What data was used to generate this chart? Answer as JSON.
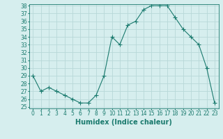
{
  "x": [
    0,
    1,
    2,
    3,
    4,
    5,
    6,
    7,
    8,
    9,
    10,
    11,
    12,
    13,
    14,
    15,
    16,
    17,
    18,
    19,
    20,
    21,
    22,
    23
  ],
  "y": [
    29.0,
    27.0,
    27.5,
    27.0,
    26.5,
    26.0,
    25.5,
    25.5,
    26.5,
    29.0,
    34.0,
    33.0,
    35.5,
    36.0,
    37.5,
    38.0,
    38.0,
    38.0,
    36.5,
    35.0,
    34.0,
    33.0,
    30.0,
    25.5
  ],
  "line_color": "#1a7a6e",
  "marker": "+",
  "marker_size": 4,
  "bg_color": "#d6eeee",
  "grid_color": "#b8d8d8",
  "xlabel": "Humidex (Indice chaleur)",
  "ylim": [
    25,
    38
  ],
  "xlim": [
    -0.5,
    23.5
  ],
  "yticks": [
    25,
    26,
    27,
    28,
    29,
    30,
    31,
    32,
    33,
    34,
    35,
    36,
    37,
    38
  ],
  "xticks": [
    0,
    1,
    2,
    3,
    4,
    5,
    6,
    7,
    8,
    9,
    10,
    11,
    12,
    13,
    14,
    15,
    16,
    17,
    18,
    19,
    20,
    21,
    22,
    23
  ],
  "tick_label_fontsize": 5.5,
  "xlabel_fontsize": 7.0
}
